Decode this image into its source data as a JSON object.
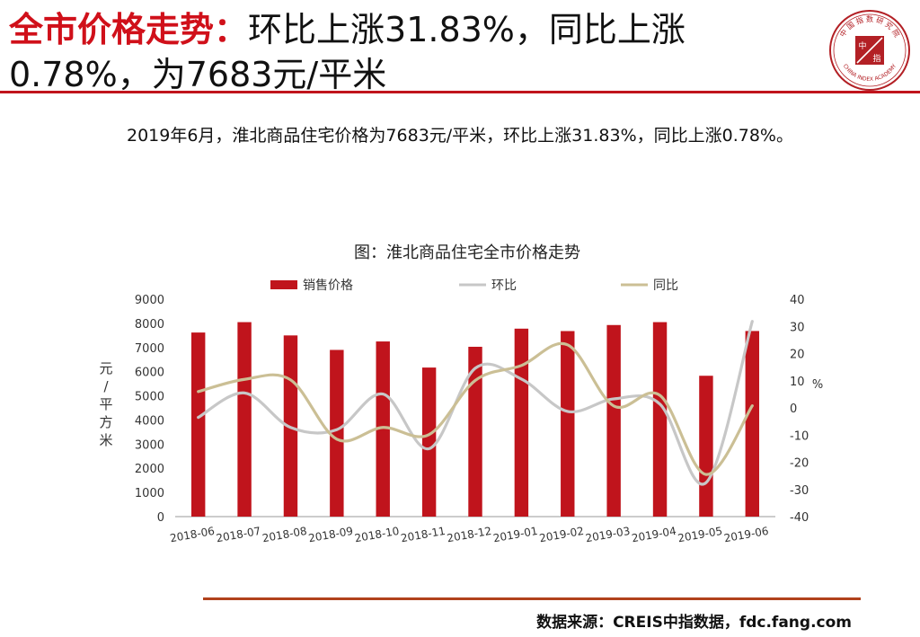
{
  "header": {
    "title_highlight": "全市价格走势：",
    "title_line1": "环比上涨31.83%，同比上涨",
    "title_line2": "0.78%，为7683元/平米"
  },
  "logo": {
    "top_text": "中 国 指 数 研 究 院",
    "center_text": "中",
    "center_text2": "指",
    "bottom_text": "CHINA INDEX ACADEMY"
  },
  "summary": "2019年6月，淮北商品住宅价格为7683元/平米，环比上涨31.83%，同比上涨0.78%。",
  "chart_data": {
    "type": "bar",
    "title": "图：淮北商品住宅全市价格走势",
    "categories": [
      "2018-06",
      "2018-07",
      "2018-08",
      "2018-09",
      "2018-10",
      "2018-11",
      "2018-12",
      "2019-01",
      "2019-02",
      "2019-03",
      "2019-04",
      "2019-05",
      "2019-06"
    ],
    "ylabel_left": "元/平方米",
    "ylabel_right": "%",
    "ylim_left": [
      0,
      9000
    ],
    "yticks_left": [
      0,
      1000,
      2000,
      3000,
      4000,
      5000,
      6000,
      7000,
      8000,
      9000
    ],
    "ylim_right": [
      -40,
      40
    ],
    "yticks_right": [
      -40,
      -30,
      -20,
      -10,
      0,
      10,
      20,
      30,
      40
    ],
    "legend_position": "top",
    "series": [
      {
        "name": "销售价格",
        "kind": "bar",
        "axis": "left",
        "color": "#c0141c",
        "values": [
          7620,
          8050,
          7500,
          6900,
          7250,
          6170,
          7030,
          7780,
          7680,
          7930,
          8050,
          5830,
          7683
        ]
      },
      {
        "name": "环比",
        "kind": "line",
        "axis": "right",
        "color": "#c7c7c7",
        "values": [
          -3.5,
          5.5,
          -7.2,
          -8.0,
          5.1,
          -15.0,
          14.6,
          10.6,
          -1.3,
          3.3,
          1.4,
          -27.5,
          31.83
        ]
      },
      {
        "name": "同比",
        "kind": "line",
        "axis": "right",
        "color": "#cbbf95",
        "values": [
          6.0,
          10.5,
          10.3,
          -11.5,
          -7.2,
          -9.8,
          10.1,
          15.6,
          23.2,
          0.7,
          4.6,
          -24.5,
          0.78
        ]
      }
    ]
  },
  "footer": {
    "source": "数据来源：CREIS中指数据，fdc.fang.com"
  }
}
